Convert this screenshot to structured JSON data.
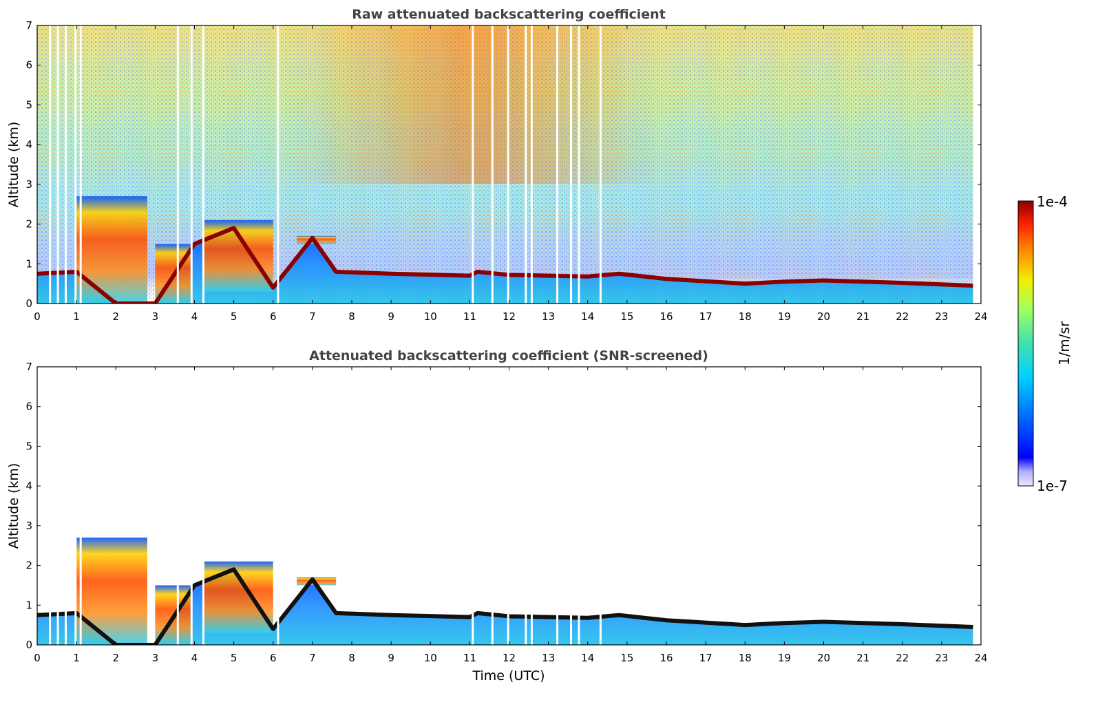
{
  "chart_data": [
    {
      "type": "heatmap",
      "title": "Raw attenuated backscattering coefficient",
      "xlabel": "",
      "ylabel": "Altitude (km)",
      "xlim": [
        0,
        24
      ],
      "ylim": [
        0,
        7
      ],
      "xticks": [
        0,
        1,
        2,
        3,
        4,
        5,
        6,
        7,
        8,
        9,
        10,
        11,
        12,
        13,
        14,
        15,
        16,
        17,
        18,
        19,
        20,
        21,
        22,
        23,
        24
      ],
      "yticks": [
        0,
        1,
        2,
        3,
        4,
        5,
        6,
        7
      ],
      "grid": false,
      "data_end_time": 23.8,
      "boundary_layer_top_km": {
        "time": [
          0,
          1.0,
          2.0,
          3.0,
          4.0,
          5.0,
          6.0,
          7.0,
          7.6,
          9,
          11,
          11.2,
          12,
          13,
          14,
          14.8,
          16,
          18,
          19,
          20,
          21,
          22,
          23,
          23.8
        ],
        "altitude": [
          0.75,
          0.8,
          0.0,
          0.0,
          1.5,
          1.9,
          0.4,
          1.65,
          0.8,
          0.75,
          0.7,
          0.8,
          0.72,
          0.7,
          0.68,
          0.75,
          0.62,
          0.5,
          0.55,
          0.58,
          0.55,
          0.52,
          0.48,
          0.45
        ]
      },
      "cloud_layers": [
        {
          "start": 1.0,
          "end": 2.8,
          "top_km": 2.7,
          "bottom_km": 0.0
        },
        {
          "start": 3.0,
          "end": 3.9,
          "top_km": 1.5,
          "bottom_km": 0.0
        },
        {
          "start": 4.2,
          "end": 6.0,
          "top_km": 2.1,
          "bottom_km": 0.3
        },
        {
          "start": 6.6,
          "end": 7.6,
          "top_km": 1.7,
          "bottom_km": 1.5
        }
      ],
      "data_gaps": [
        0.3,
        0.5,
        0.7,
        0.95,
        1.08,
        3.55,
        3.9,
        4.2,
        6.1,
        11.05,
        11.55,
        11.95,
        12.4,
        12.55,
        13.2,
        13.55,
        13.75,
        14.3
      ]
    },
    {
      "type": "heatmap",
      "title": "Attenuated backscattering coefficient (SNR-screened)",
      "xlabel": "Time (UTC)",
      "ylabel": "Altitude (km)",
      "xlim": [
        0,
        24
      ],
      "ylim": [
        0,
        7
      ],
      "xticks": [
        0,
        1,
        2,
        3,
        4,
        5,
        6,
        7,
        8,
        9,
        10,
        11,
        12,
        13,
        14,
        15,
        16,
        17,
        18,
        19,
        20,
        21,
        22,
        23,
        24
      ],
      "yticks": [
        0,
        1,
        2,
        3,
        4,
        5,
        6,
        7
      ],
      "grid": false,
      "screened": true
    }
  ],
  "colorbar": {
    "label": "1/m/sr",
    "max_label": "1e-4",
    "min_label": "1e-7",
    "colormap": "jet"
  },
  "colors": {
    "title": "#444444",
    "boundary_layer": "#8b0000",
    "background": "#ffffff"
  }
}
